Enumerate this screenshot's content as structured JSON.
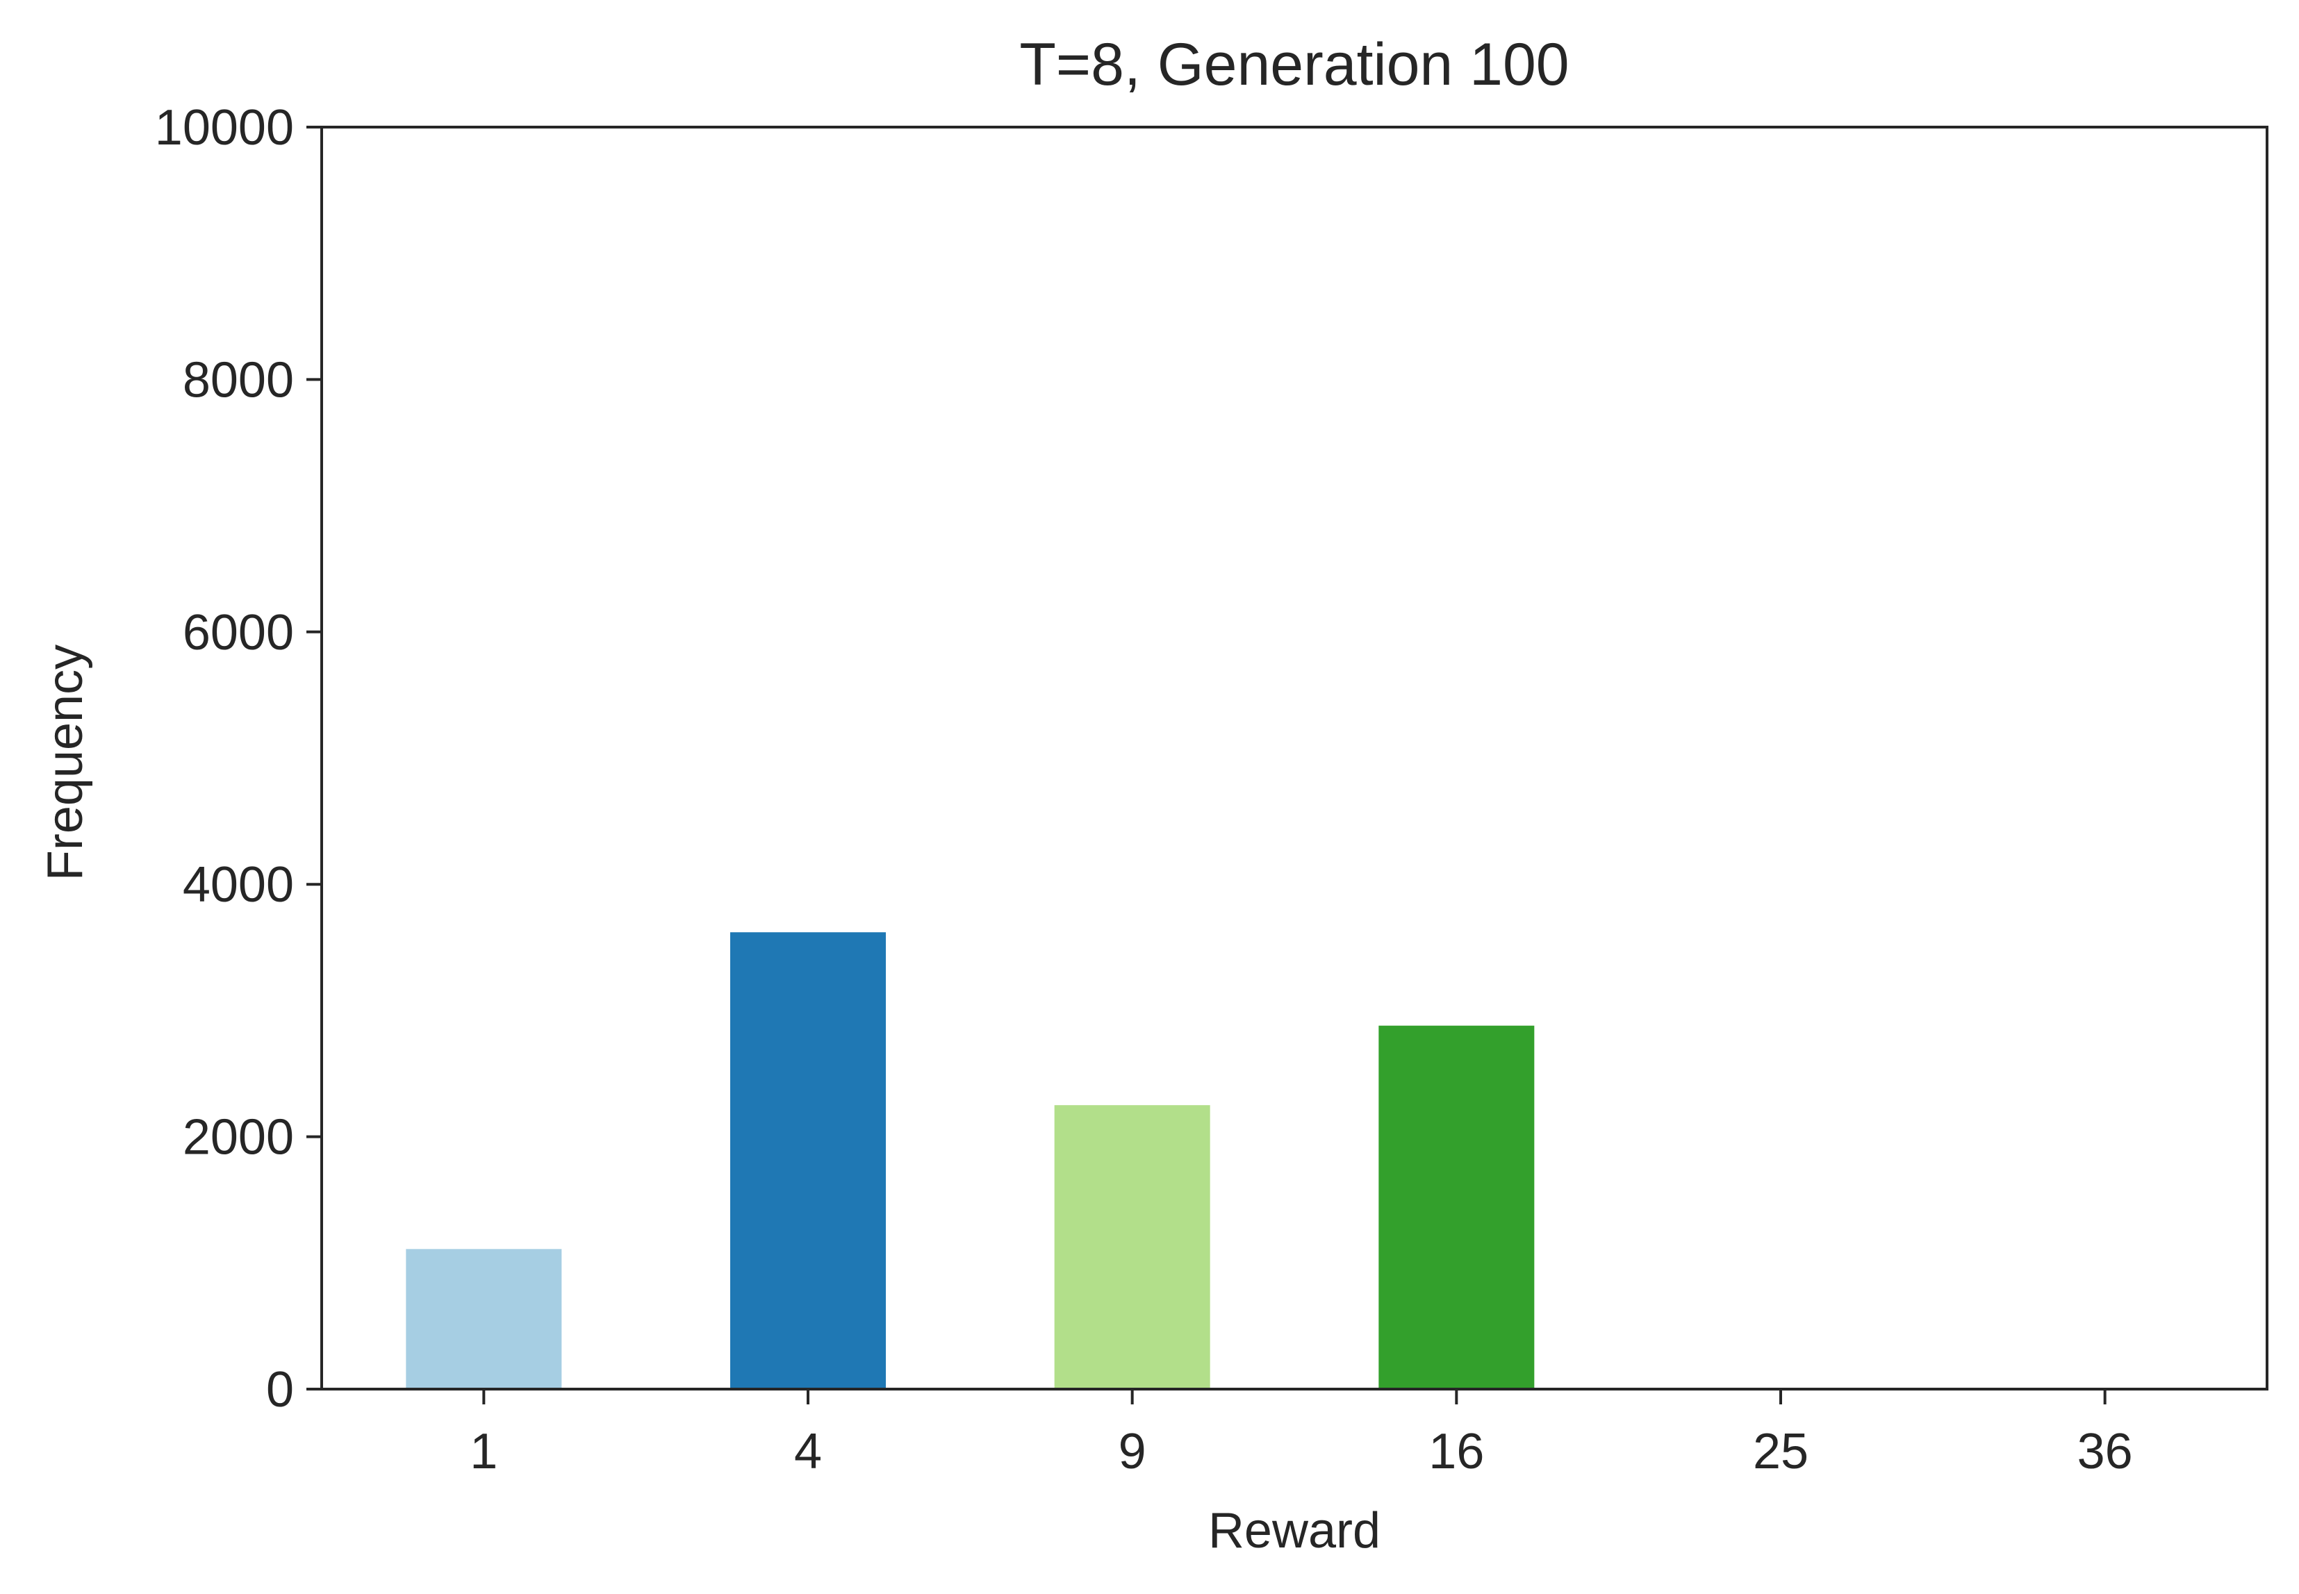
{
  "chart_data": {
    "type": "bar",
    "title": "T=8, Generation 100",
    "xlabel": "Reward",
    "ylabel": "Frequency",
    "categories": [
      "1",
      "4",
      "9",
      "16",
      "25",
      "36"
    ],
    "values": [
      1110,
      3620,
      2250,
      2880,
      0,
      0
    ],
    "colors": [
      "#a6cee3",
      "#1f78b4",
      "#b2df8a",
      "#33a02c",
      "#fb9a99",
      "#e31a1c"
    ],
    "ylim": [
      0,
      10000
    ],
    "yticks": [
      "0",
      "2000",
      "4000",
      "6000",
      "8000",
      "10000"
    ],
    "ytick_values": [
      0,
      2000,
      4000,
      6000,
      8000,
      10000
    ],
    "grid": false,
    "legend": "none"
  }
}
